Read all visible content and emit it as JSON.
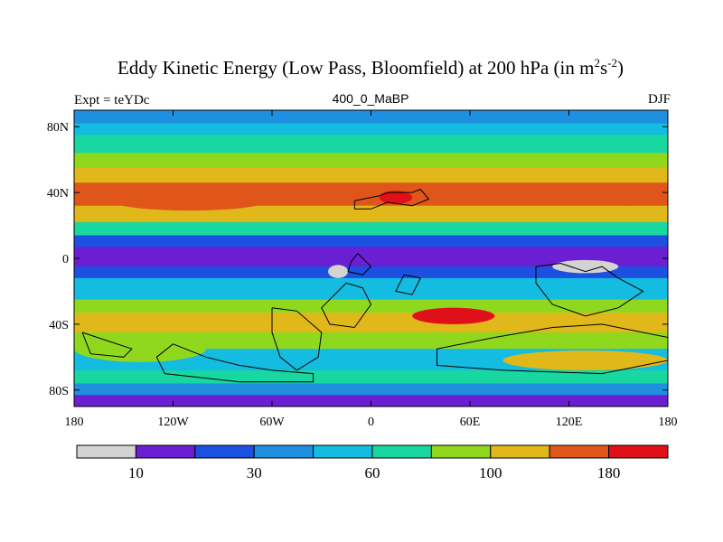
{
  "title": {
    "main": "Eddy Kinetic Energy (Low Pass, Bloomfield) at 200 hPa (in m",
    "sup1": "2",
    "mid": "s",
    "sup2": "-2",
    "end": ")"
  },
  "left_label": "Expt = teYDc",
  "center_label": "400_0_MaBP",
  "right_label": "DJF",
  "axes": {
    "x_ticks": [
      "180",
      "120W",
      "60W",
      "0",
      "60E",
      "120E",
      "180"
    ],
    "y_ticks": [
      "80N",
      "40N",
      "0",
      "40S",
      "80S"
    ]
  },
  "colorbar": {
    "colors": [
      "#d3d3d3",
      "#6a1fd3",
      "#1c50e0",
      "#1f8fe0",
      "#13bce0",
      "#19d7a0",
      "#8fd81e",
      "#e0b81a",
      "#e0561a",
      "#e0101a"
    ],
    "labels": [
      "10",
      "30",
      "60",
      "100",
      "180"
    ]
  },
  "chart_data": {
    "type": "heatmap",
    "projection": "cylindrical equidistant",
    "x_range": [
      -180,
      180
    ],
    "y_range": [
      -90,
      90
    ],
    "x_ticks": [
      -180,
      -120,
      -60,
      0,
      60,
      120,
      180
    ],
    "y_ticks": [
      80,
      40,
      0,
      -40,
      -80
    ],
    "contour_levels": [
      10,
      20,
      30,
      45,
      60,
      80,
      100,
      140,
      180
    ],
    "levels_labeled": [
      10,
      30,
      60,
      100,
      180
    ],
    "bands": [
      {
        "lat_range": [
          82,
          90
        ],
        "level_index": 3
      },
      {
        "lat_range": [
          75,
          82
        ],
        "level_index": 4
      },
      {
        "lat_range": [
          64,
          75
        ],
        "level_index": 5
      },
      {
        "lat_range": [
          55,
          64
        ],
        "level_index": 6
      },
      {
        "lat_range": [
          46,
          55
        ],
        "level_index": 7
      },
      {
        "lat_range": [
          32,
          46
        ],
        "level_index": 8
      },
      {
        "lat_range": [
          22,
          32
        ],
        "level_index": 7
      },
      {
        "lat_range": [
          14,
          22
        ],
        "level_index": 5
      },
      {
        "lat_range": [
          7,
          14
        ],
        "level_index": 2
      },
      {
        "lat_range": [
          -5,
          7
        ],
        "level_index": 1
      },
      {
        "lat_range": [
          -12,
          -5
        ],
        "level_index": 2
      },
      {
        "lat_range": [
          -25,
          -12
        ],
        "level_index": 4
      },
      {
        "lat_range": [
          -33,
          -25
        ],
        "level_index": 6
      },
      {
        "lat_range": [
          -45,
          -33
        ],
        "level_index": 7
      },
      {
        "lat_range": [
          -55,
          -45
        ],
        "level_index": 6
      },
      {
        "lat_range": [
          -68,
          -55
        ],
        "level_index": 4
      },
      {
        "lat_range": [
          -76,
          -68
        ],
        "level_index": 5
      },
      {
        "lat_range": [
          -83,
          -76
        ],
        "level_index": 3
      },
      {
        "lat_range": [
          -90,
          -83
        ],
        "level_index": 1
      }
    ],
    "features": [
      {
        "type": "blob",
        "lon": -110,
        "lat": 36,
        "rx": 50,
        "ry": 7,
        "level_index": 8
      },
      {
        "type": "blob",
        "lon": 15,
        "lat": 37,
        "rx": 10,
        "ry": 4,
        "level_index": 9
      },
      {
        "type": "blob",
        "lon": 155,
        "lat": 38,
        "rx": 30,
        "ry": 6,
        "level_index": 8
      },
      {
        "type": "blob",
        "lon": -20,
        "lat": -8,
        "rx": 6,
        "ry": 4,
        "level_index": 0
      },
      {
        "type": "blob",
        "lon": 130,
        "lat": -5,
        "rx": 20,
        "ry": 4,
        "level_index": 0
      },
      {
        "type": "blob",
        "lon": 50,
        "lat": -35,
        "rx": 25,
        "ry": 5,
        "level_index": 9
      },
      {
        "type": "blob",
        "lon": -140,
        "lat": -55,
        "rx": 40,
        "ry": 8,
        "level_index": 6
      },
      {
        "type": "blob",
        "lon": 130,
        "lat": -62,
        "rx": 50,
        "ry": 6,
        "level_index": 7
      }
    ]
  }
}
